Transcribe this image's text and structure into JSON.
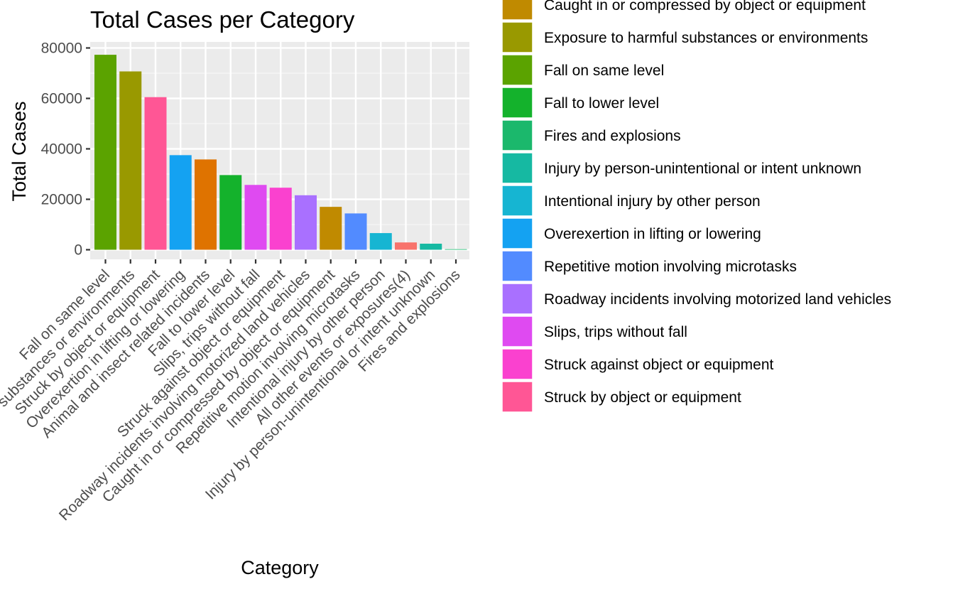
{
  "chart_data": {
    "type": "bar",
    "title": "Total Cases per Category",
    "xlabel": "Category",
    "ylabel": "Total Cases",
    "ylim": [
      0,
      80000
    ],
    "yticks": [
      0,
      20000,
      40000,
      60000,
      80000
    ],
    "ytick_labels": [
      "0",
      "20000",
      "40000",
      "60000",
      "80000"
    ],
    "grid": true,
    "legend_position": "right",
    "categories": [
      "Fall on same level",
      "Exposure to harmful substances or environments",
      "Struck by object or equipment",
      "Overexertion in lifting or lowering",
      "Animal and insect related incidents",
      "Fall to lower level",
      "Slips, trips without fall",
      "Struck against object or equipment",
      "Roadway incidents involving motorized land vehicles",
      "Caught in or compressed by object or equipment",
      "Repetitive motion involving microtasks",
      "Intentional injury by other person",
      "All other events or exposures(4)",
      "Injury by person-unintentional or intent unknown",
      "Fires and explosions"
    ],
    "values": [
      77300,
      70700,
      60500,
      37500,
      35800,
      29600,
      25700,
      24600,
      21600,
      17000,
      14400,
      6600,
      2900,
      2400,
      150
    ],
    "colors": [
      "#5BA300",
      "#999900",
      "#FF5695",
      "#14A2F2",
      "#DF7300",
      "#14B22C",
      "#DF4AF1",
      "#FA41CF",
      "#A970FF",
      "#C08A00",
      "#528BFF",
      "#16B5D2",
      "#F8736C",
      "#16B9A2",
      "#1BB86C"
    ],
    "legend": [
      {
        "label": "Caught in or compressed by object or equipment",
        "color": "#C08A00"
      },
      {
        "label": "Exposure to harmful substances or environments",
        "color": "#999900"
      },
      {
        "label": "Fall on same level",
        "color": "#5BA300"
      },
      {
        "label": "Fall to lower level",
        "color": "#14B22C"
      },
      {
        "label": "Fires and explosions",
        "color": "#1BB86C"
      },
      {
        "label": "Injury by person-unintentional or intent unknown",
        "color": "#16B9A2"
      },
      {
        "label": "Intentional injury by other person",
        "color": "#16B5D2"
      },
      {
        "label": "Overexertion in lifting or lowering",
        "color": "#14A2F2"
      },
      {
        "label": "Repetitive motion involving microtasks",
        "color": "#528BFF"
      },
      {
        "label": "Roadway incidents involving motorized land vehicles",
        "color": "#A970FF"
      },
      {
        "label": "Slips, trips without fall",
        "color": "#DF4AF1"
      },
      {
        "label": "Struck against object or equipment",
        "color": "#FA41CF"
      },
      {
        "label": "Struck by object or equipment",
        "color": "#FF5695"
      }
    ]
  }
}
